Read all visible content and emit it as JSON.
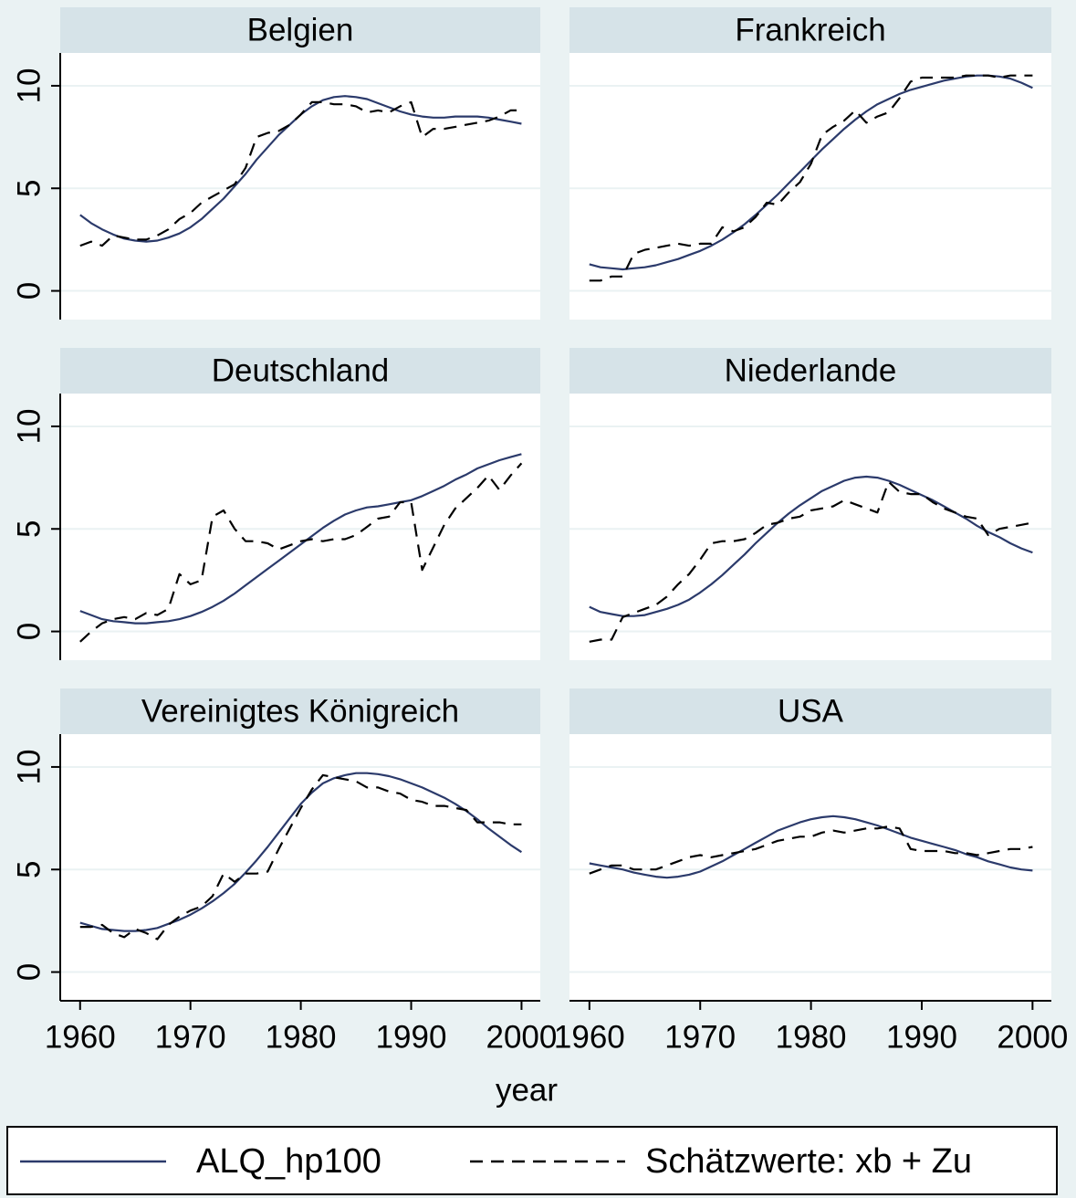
{
  "chart_data": [
    {
      "type": "line",
      "title": "Belgien",
      "x": [
        1960,
        1961,
        1962,
        1963,
        1964,
        1965,
        1966,
        1967,
        1968,
        1969,
        1970,
        1971,
        1972,
        1973,
        1974,
        1975,
        1976,
        1977,
        1978,
        1979,
        1980,
        1981,
        1982,
        1983,
        1984,
        1985,
        1986,
        1987,
        1988,
        1989,
        1990,
        1991,
        1992,
        1993,
        1994,
        1995,
        1996,
        1997,
        1998,
        1999,
        2000
      ],
      "xlim": [
        1958.2,
        2001.7
      ],
      "ylim": [
        -1.4,
        11.6
      ],
      "yticks": [
        0,
        5,
        10
      ],
      "ytick_labels": true,
      "grid": true,
      "series": [
        {
          "name": "ALQ_hp100",
          "color": "#2b3a6b",
          "dash": "none",
          "values": [
            3.7,
            3.3,
            3.0,
            2.75,
            2.55,
            2.45,
            2.4,
            2.45,
            2.6,
            2.8,
            3.1,
            3.5,
            4.0,
            4.5,
            5.1,
            5.7,
            6.4,
            7.0,
            7.6,
            8.1,
            8.6,
            9.0,
            9.3,
            9.45,
            9.5,
            9.45,
            9.35,
            9.15,
            8.95,
            8.75,
            8.6,
            8.5,
            8.45,
            8.45,
            8.5,
            8.5,
            8.5,
            8.45,
            8.35,
            8.25,
            8.15
          ]
        },
        {
          "name": "Schätzwerte: xb + Zu",
          "color": "#000000",
          "dash": "14 9",
          "values": [
            2.2,
            2.4,
            2.2,
            2.7,
            2.6,
            2.5,
            2.5,
            2.7,
            3.0,
            3.5,
            3.8,
            4.3,
            4.6,
            4.9,
            5.2,
            6.0,
            7.5,
            7.7,
            7.8,
            8.1,
            8.6,
            9.2,
            9.2,
            9.1,
            9.1,
            9.0,
            8.7,
            8.8,
            8.7,
            9.0,
            9.2,
            7.5,
            7.9,
            7.9,
            8.0,
            8.1,
            8.2,
            8.3,
            8.5,
            8.8,
            8.8
          ]
        }
      ]
    },
    {
      "type": "line",
      "title": "Frankreich",
      "x": [
        1960,
        1961,
        1962,
        1963,
        1964,
        1965,
        1966,
        1967,
        1968,
        1969,
        1970,
        1971,
        1972,
        1973,
        1974,
        1975,
        1976,
        1977,
        1978,
        1979,
        1980,
        1981,
        1982,
        1983,
        1984,
        1985,
        1986,
        1987,
        1988,
        1989,
        1990,
        1991,
        1992,
        1993,
        1994,
        1995,
        1996,
        1997,
        1998,
        1999,
        2000
      ],
      "xlim": [
        1958.2,
        2001.7
      ],
      "ylim": [
        -1.4,
        11.6
      ],
      "yticks": [
        0,
        5,
        10
      ],
      "ytick_labels": false,
      "grid": true,
      "series": [
        {
          "name": "ALQ_hp100",
          "color": "#2b3a6b",
          "dash": "none",
          "values": [
            1.3,
            1.15,
            1.1,
            1.05,
            1.1,
            1.15,
            1.25,
            1.4,
            1.55,
            1.75,
            1.95,
            2.2,
            2.5,
            2.85,
            3.25,
            3.7,
            4.2,
            4.7,
            5.25,
            5.8,
            6.35,
            6.9,
            7.4,
            7.9,
            8.35,
            8.75,
            9.1,
            9.35,
            9.6,
            9.8,
            9.95,
            10.1,
            10.25,
            10.35,
            10.45,
            10.5,
            10.5,
            10.45,
            10.35,
            10.15,
            9.9
          ]
        },
        {
          "name": "Schätzwerte: xb + Zu",
          "color": "#000000",
          "dash": "14 9",
          "values": [
            0.5,
            0.5,
            0.7,
            0.7,
            1.8,
            2.0,
            2.1,
            2.2,
            2.3,
            2.2,
            2.3,
            2.3,
            3.1,
            2.9,
            3.1,
            3.6,
            4.3,
            4.2,
            4.8,
            5.3,
            6.2,
            7.6,
            8.0,
            8.3,
            8.8,
            8.2,
            8.5,
            8.7,
            9.4,
            10.2,
            10.4,
            10.4,
            10.4,
            10.4,
            10.5,
            10.5,
            10.5,
            10.4,
            10.5,
            10.5,
            10.5
          ]
        }
      ]
    },
    {
      "type": "line",
      "title": "Deutschland",
      "x": [
        1960,
        1961,
        1962,
        1963,
        1964,
        1965,
        1966,
        1967,
        1968,
        1969,
        1970,
        1971,
        1972,
        1973,
        1974,
        1975,
        1976,
        1977,
        1978,
        1979,
        1980,
        1981,
        1982,
        1983,
        1984,
        1985,
        1986,
        1987,
        1988,
        1989,
        1990,
        1991,
        1992,
        1993,
        1994,
        1995,
        1996,
        1997,
        1998,
        1999,
        2000
      ],
      "xlim": [
        1958.2,
        2001.7
      ],
      "ylim": [
        -1.4,
        11.6
      ],
      "yticks": [
        0,
        5,
        10
      ],
      "ytick_labels": true,
      "grid": true,
      "series": [
        {
          "name": "ALQ_hp100",
          "color": "#2b3a6b",
          "dash": "none",
          "values": [
            1.0,
            0.8,
            0.6,
            0.5,
            0.45,
            0.4,
            0.4,
            0.45,
            0.5,
            0.6,
            0.75,
            0.95,
            1.2,
            1.5,
            1.85,
            2.25,
            2.65,
            3.05,
            3.45,
            3.85,
            4.25,
            4.65,
            5.05,
            5.4,
            5.7,
            5.9,
            6.05,
            6.1,
            6.2,
            6.3,
            6.4,
            6.6,
            6.85,
            7.1,
            7.4,
            7.65,
            7.95,
            8.15,
            8.35,
            8.5,
            8.65
          ]
        },
        {
          "name": "Schätzwerte: xb + Zu",
          "color": "#000000",
          "dash": "14 9",
          "values": [
            -0.5,
            0.0,
            0.4,
            0.6,
            0.7,
            0.6,
            0.9,
            0.8,
            1.1,
            2.8,
            2.3,
            2.5,
            5.6,
            5.9,
            5.0,
            4.4,
            4.4,
            4.3,
            4.0,
            4.2,
            4.4,
            4.5,
            4.4,
            4.5,
            4.5,
            4.7,
            5.1,
            5.5,
            5.6,
            6.3,
            6.3,
            3.0,
            4.1,
            5.2,
            6.0,
            6.5,
            7.0,
            7.6,
            6.9,
            7.6,
            8.2
          ]
        }
      ]
    },
    {
      "type": "line",
      "title": "Niederlande",
      "x": [
        1960,
        1961,
        1962,
        1963,
        1964,
        1965,
        1966,
        1967,
        1968,
        1969,
        1970,
        1971,
        1972,
        1973,
        1974,
        1975,
        1976,
        1977,
        1978,
        1979,
        1980,
        1981,
        1982,
        1983,
        1984,
        1985,
        1986,
        1987,
        1988,
        1989,
        1990,
        1991,
        1992,
        1993,
        1994,
        1995,
        1996,
        1997,
        1998,
        1999,
        2000
      ],
      "xlim": [
        1958.2,
        2001.7
      ],
      "ylim": [
        -1.4,
        11.6
      ],
      "yticks": [
        0,
        5,
        10
      ],
      "ytick_labels": false,
      "grid": true,
      "series": [
        {
          "name": "ALQ_hp100",
          "color": "#2b3a6b",
          "dash": "none",
          "values": [
            1.2,
            0.95,
            0.85,
            0.75,
            0.75,
            0.8,
            0.95,
            1.1,
            1.3,
            1.55,
            1.9,
            2.3,
            2.75,
            3.25,
            3.75,
            4.3,
            4.8,
            5.3,
            5.75,
            6.15,
            6.5,
            6.85,
            7.1,
            7.35,
            7.5,
            7.55,
            7.5,
            7.35,
            7.15,
            6.9,
            6.65,
            6.4,
            6.1,
            5.8,
            5.5,
            5.15,
            4.85,
            4.6,
            4.3,
            4.05,
            3.85
          ]
        },
        {
          "name": "Schätzwerte: xb + Zu",
          "color": "#000000",
          "dash": "14 9",
          "values": [
            -0.5,
            -0.4,
            -0.4,
            0.7,
            0.9,
            1.1,
            1.3,
            1.7,
            2.3,
            2.8,
            3.5,
            4.3,
            4.4,
            4.4,
            4.5,
            4.8,
            5.2,
            5.3,
            5.5,
            5.6,
            5.9,
            6.0,
            6.1,
            6.4,
            6.2,
            6.0,
            5.8,
            7.3,
            6.8,
            6.7,
            6.7,
            6.3,
            6.0,
            5.8,
            5.6,
            5.5,
            4.7,
            5.0,
            5.1,
            5.2,
            5.3
          ]
        }
      ]
    },
    {
      "type": "line",
      "title": "Vereinigtes Königreich",
      "x": [
        1960,
        1961,
        1962,
        1963,
        1964,
        1965,
        1966,
        1967,
        1968,
        1969,
        1970,
        1971,
        1972,
        1973,
        1974,
        1975,
        1976,
        1977,
        1978,
        1979,
        1980,
        1981,
        1982,
        1983,
        1984,
        1985,
        1986,
        1987,
        1988,
        1989,
        1990,
        1991,
        1992,
        1993,
        1994,
        1995,
        1996,
        1997,
        1998,
        1999,
        2000
      ],
      "xlim": [
        1958.2,
        2001.7
      ],
      "ylim": [
        -1.4,
        11.6
      ],
      "yticks": [
        0,
        5,
        10
      ],
      "ytick_labels": true,
      "grid": true,
      "xticks": [
        1960,
        1970,
        1980,
        1990,
        2000
      ],
      "xlabel": "year",
      "series": [
        {
          "name": "ALQ_hp100",
          "color": "#2b3a6b",
          "dash": "none",
          "values": [
            2.4,
            2.25,
            2.1,
            2.05,
            2.0,
            2.0,
            2.05,
            2.15,
            2.35,
            2.55,
            2.8,
            3.1,
            3.45,
            3.85,
            4.3,
            4.85,
            5.45,
            6.1,
            6.8,
            7.5,
            8.2,
            8.75,
            9.2,
            9.45,
            9.6,
            9.7,
            9.7,
            9.65,
            9.55,
            9.4,
            9.2,
            9.0,
            8.75,
            8.5,
            8.2,
            7.85,
            7.45,
            7.0,
            6.6,
            6.2,
            5.85
          ]
        },
        {
          "name": "Schätzwerte: xb + Zu",
          "color": "#000000",
          "dash": "14 9",
          "values": [
            2.2,
            2.2,
            2.3,
            1.9,
            1.7,
            2.1,
            1.9,
            1.6,
            2.3,
            2.7,
            3.0,
            3.2,
            3.7,
            4.8,
            4.4,
            4.8,
            4.8,
            4.9,
            6.0,
            7.0,
            8.0,
            8.9,
            9.6,
            9.5,
            9.4,
            9.3,
            9.0,
            9.0,
            8.8,
            8.7,
            8.4,
            8.3,
            8.1,
            8.1,
            8.0,
            7.9,
            7.3,
            7.3,
            7.3,
            7.2,
            7.2
          ]
        }
      ]
    },
    {
      "type": "line",
      "title": "USA",
      "x": [
        1960,
        1961,
        1962,
        1963,
        1964,
        1965,
        1966,
        1967,
        1968,
        1969,
        1970,
        1971,
        1972,
        1973,
        1974,
        1975,
        1976,
        1977,
        1978,
        1979,
        1980,
        1981,
        1982,
        1983,
        1984,
        1985,
        1986,
        1987,
        1988,
        1989,
        1990,
        1991,
        1992,
        1993,
        1994,
        1995,
        1996,
        1997,
        1998,
        1999,
        2000
      ],
      "xlim": [
        1958.2,
        2001.7
      ],
      "ylim": [
        -1.4,
        11.6
      ],
      "yticks": [
        0,
        5,
        10
      ],
      "ytick_labels": false,
      "grid": true,
      "xticks": [
        1960,
        1970,
        1980,
        1990,
        2000
      ],
      "series": [
        {
          "name": "ALQ_hp100",
          "color": "#2b3a6b",
          "dash": "none",
          "values": [
            5.3,
            5.2,
            5.1,
            5.0,
            4.85,
            4.75,
            4.65,
            4.6,
            4.65,
            4.75,
            4.9,
            5.15,
            5.4,
            5.7,
            6.0,
            6.3,
            6.6,
            6.9,
            7.1,
            7.3,
            7.45,
            7.55,
            7.6,
            7.55,
            7.45,
            7.3,
            7.15,
            6.95,
            6.75,
            6.55,
            6.4,
            6.25,
            6.1,
            5.95,
            5.75,
            5.6,
            5.4,
            5.25,
            5.1,
            5.0,
            4.95
          ]
        },
        {
          "name": "Schätzwerte: xb + Zu",
          "color": "#000000",
          "dash": "14 9",
          "values": [
            4.8,
            5.0,
            5.2,
            5.2,
            5.0,
            5.0,
            5.0,
            5.2,
            5.4,
            5.6,
            5.7,
            5.6,
            5.7,
            5.8,
            5.9,
            6.0,
            6.2,
            6.4,
            6.5,
            6.6,
            6.6,
            6.8,
            6.9,
            6.8,
            6.9,
            7.0,
            7.0,
            7.1,
            7.0,
            6.0,
            5.9,
            5.9,
            5.9,
            5.8,
            5.8,
            5.7,
            5.8,
            5.9,
            6.0,
            6.0,
            6.1
          ]
        }
      ]
    }
  ]
}
